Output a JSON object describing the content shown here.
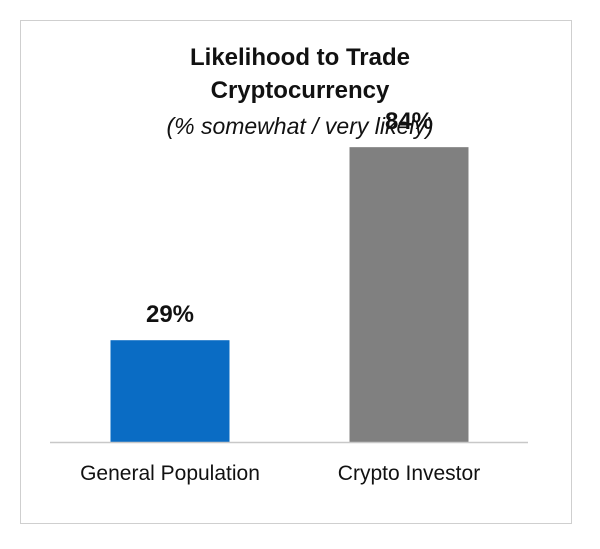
{
  "chart_data": {
    "type": "bar",
    "title": "Likelihood to Trade Cryptocurrency",
    "title_lines": [
      "Likelihood to Trade",
      "Cryptocurrency"
    ],
    "subtitle": "(% somewhat / very likely)",
    "categories": [
      "General Population",
      "Crypto Investor"
    ],
    "values": [
      29,
      84
    ],
    "data_labels": [
      "29%",
      "84%"
    ],
    "colors": [
      "#0a6cc4",
      "#808080"
    ],
    "ylim": [
      0,
      100
    ],
    "grid": false,
    "xlabel": "",
    "ylabel": ""
  }
}
